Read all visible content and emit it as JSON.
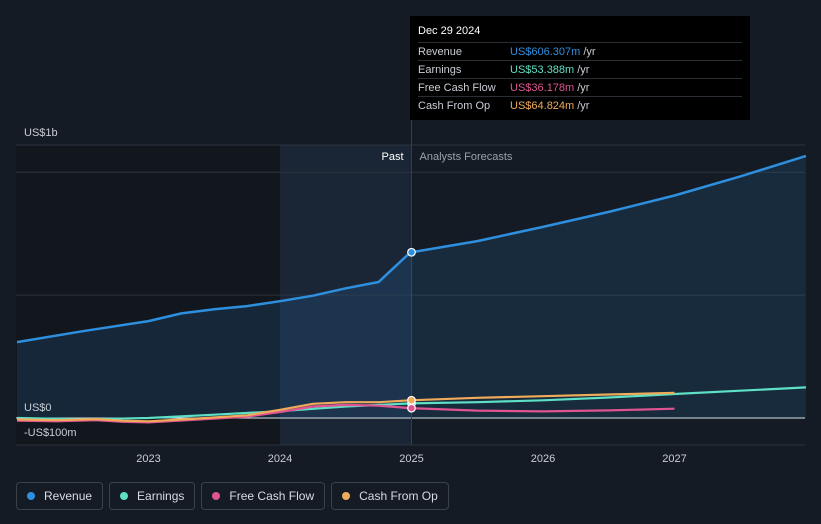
{
  "tooltip": {
    "date": "Dec 29 2024",
    "rows": [
      {
        "label": "Revenue",
        "value": "US$606.307m",
        "unit": "/yr",
        "color": "#2e8fdf"
      },
      {
        "label": "Earnings",
        "value": "US$53.388m",
        "unit": "/yr",
        "color": "#5de0c5"
      },
      {
        "label": "Free Cash Flow",
        "value": "US$36.178m",
        "unit": "/yr",
        "color": "#e05591"
      },
      {
        "label": "Cash From Op",
        "value": "US$64.824m",
        "unit": "/yr",
        "color": "#f0ab5a"
      }
    ]
  },
  "regions": {
    "past": "Past",
    "forecast": "Analysts Forecasts"
  },
  "legend": [
    {
      "label": "Revenue",
      "color": "#2e8fdf"
    },
    {
      "label": "Earnings",
      "color": "#5de0c5"
    },
    {
      "label": "Free Cash Flow",
      "color": "#e05591"
    },
    {
      "label": "Cash From Op",
      "color": "#f0ab5a"
    }
  ],
  "chart_data": {
    "type": "line",
    "y_tick_labels": [
      "US$1b",
      "US$0",
      "-US$100m"
    ],
    "x_tick_labels": [
      "2023",
      "2024",
      "2025",
      "2026",
      "2027"
    ],
    "ylim": [
      -100,
      1050
    ],
    "xlim": [
      2021.75,
      2028.0
    ],
    "divider_x": 2025.0,
    "highlight_start_x": 2024.0,
    "grid": true,
    "series": [
      {
        "name": "Revenue",
        "color": "#2e8fdf",
        "fill": true,
        "points": [
          [
            2022.0,
            278
          ],
          [
            2022.5,
            318
          ],
          [
            2023.0,
            355
          ],
          [
            2023.25,
            383
          ],
          [
            2023.5,
            398
          ],
          [
            2023.75,
            410
          ],
          [
            2024.0,
            428
          ],
          [
            2024.25,
            448
          ],
          [
            2024.5,
            475
          ],
          [
            2024.75,
            498
          ],
          [
            2024.99,
            606.307
          ],
          [
            2025.5,
            648
          ],
          [
            2026.0,
            700
          ],
          [
            2026.5,
            755
          ],
          [
            2027.0,
            815
          ],
          [
            2027.5,
            885
          ],
          [
            2028.0,
            960
          ]
        ]
      },
      {
        "name": "Earnings",
        "color": "#5de0c5",
        "fill": false,
        "points": [
          [
            2022.0,
            0
          ],
          [
            2022.5,
            -5
          ],
          [
            2023.0,
            0
          ],
          [
            2023.5,
            12
          ],
          [
            2024.0,
            25
          ],
          [
            2024.5,
            42
          ],
          [
            2024.99,
            53.388
          ],
          [
            2025.5,
            58
          ],
          [
            2026.0,
            65
          ],
          [
            2026.5,
            75
          ],
          [
            2027.0,
            88
          ],
          [
            2027.5,
            100
          ],
          [
            2028.0,
            112
          ]
        ]
      },
      {
        "name": "Free Cash Flow",
        "color": "#e05591",
        "fill": false,
        "points": [
          [
            2022.0,
            -10
          ],
          [
            2022.3,
            -12
          ],
          [
            2022.6,
            -8
          ],
          [
            2022.8,
            -14
          ],
          [
            2023.0,
            -16
          ],
          [
            2023.3,
            -8
          ],
          [
            2023.75,
            5
          ],
          [
            2024.0,
            22
          ],
          [
            2024.25,
            42
          ],
          [
            2024.5,
            48
          ],
          [
            2024.75,
            45
          ],
          [
            2024.99,
            36.178
          ],
          [
            2025.5,
            27
          ],
          [
            2026.0,
            24
          ],
          [
            2026.5,
            28
          ],
          [
            2027.0,
            34
          ]
        ]
      },
      {
        "name": "Cash From Op",
        "color": "#f0ab5a",
        "fill": false,
        "points": [
          [
            2022.0,
            -5
          ],
          [
            2022.3,
            -8
          ],
          [
            2022.6,
            -4
          ],
          [
            2022.8,
            -10
          ],
          [
            2023.0,
            -12
          ],
          [
            2023.3,
            -4
          ],
          [
            2023.75,
            10
          ],
          [
            2024.0,
            30
          ],
          [
            2024.25,
            52
          ],
          [
            2024.5,
            58
          ],
          [
            2024.75,
            58
          ],
          [
            2024.99,
            64.824
          ],
          [
            2025.5,
            74
          ],
          [
            2026.0,
            80
          ],
          [
            2026.5,
            86
          ],
          [
            2027.0,
            92
          ]
        ]
      }
    ]
  }
}
